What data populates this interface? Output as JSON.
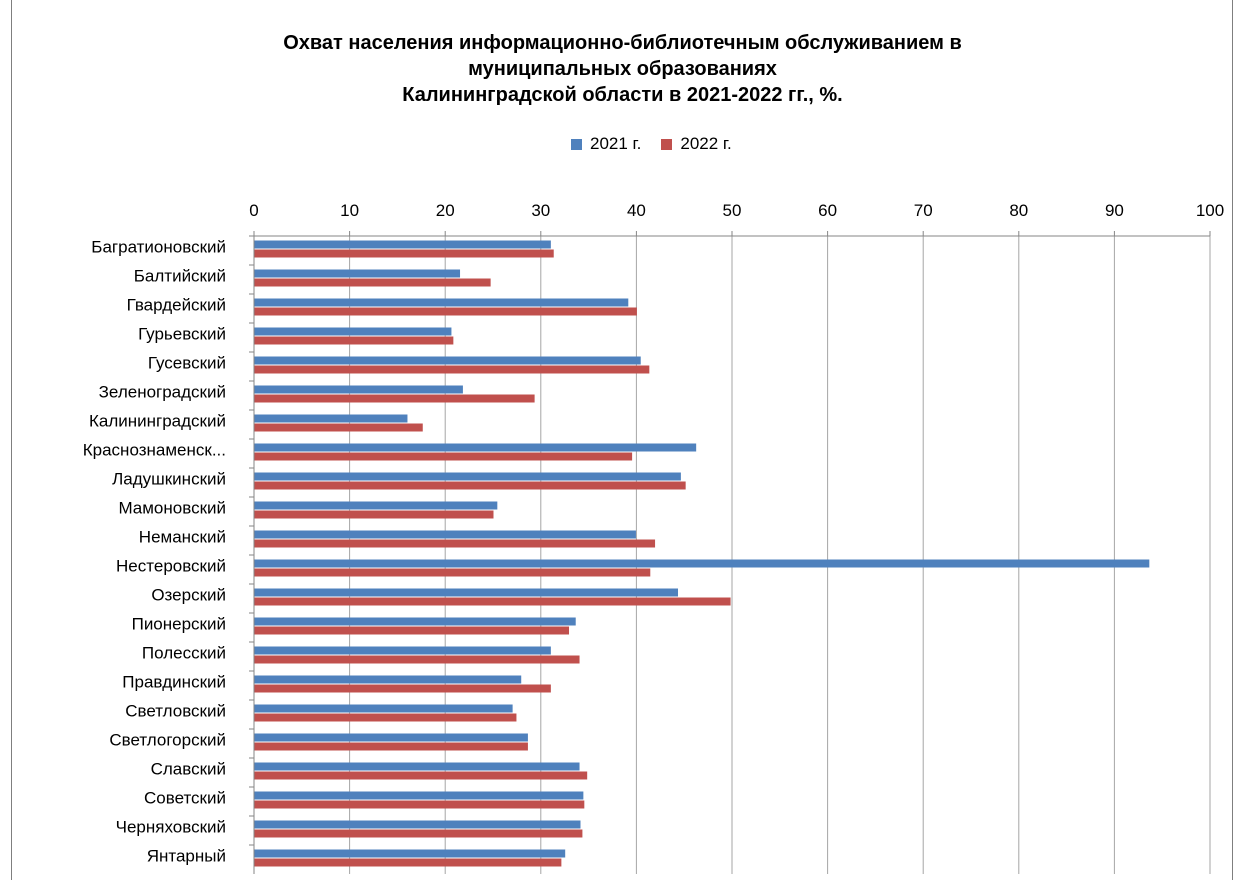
{
  "chart_data": {
    "type": "bar",
    "orientation": "horizontal",
    "title_lines": [
      "Охват населения информационно-библиотечным обслуживанием в",
      "муниципальных образованиях",
      "Калининградской области в 2021-2022 гг., %."
    ],
    "xlim": [
      0,
      100
    ],
    "x_ticks": [
      "0",
      "10",
      "20",
      "30",
      "40",
      "50",
      "60",
      "70",
      "80",
      "90",
      "100"
    ],
    "grid": true,
    "legend_position": "top",
    "categories": [
      "Багратионовский",
      "Балтийский",
      "Гвардейский",
      "Гурьевский",
      "Гусевский",
      "Зеленоградский",
      "Калининградский",
      "Краснознаменск...",
      "Ладушкинский",
      "Мамоновский",
      "Неманский",
      "Нестеровский",
      "Озерский",
      "Пионерский",
      "Полесский",
      "Правдинский",
      "Светловский",
      "Светлогорский",
      "Славский",
      "Советский",
      "Черняховский",
      "Янтарный"
    ],
    "series": [
      {
        "name": "2021 г.",
        "color": "#4f81bd",
        "values": [
          31.0,
          21.5,
          39.1,
          20.6,
          40.4,
          21.8,
          16.0,
          46.2,
          44.6,
          25.4,
          39.9,
          93.6,
          44.3,
          33.6,
          31.0,
          27.9,
          27.0,
          28.6,
          34.0,
          34.4,
          34.1,
          32.5
        ]
      },
      {
        "name": "2022 г.",
        "color": "#c0504d",
        "values": [
          31.3,
          24.7,
          40.0,
          20.8,
          41.3,
          29.3,
          17.6,
          39.5,
          45.1,
          25.0,
          41.9,
          41.4,
          49.8,
          32.9,
          34.0,
          31.0,
          27.4,
          28.6,
          34.8,
          34.5,
          34.3,
          32.1
        ]
      }
    ]
  }
}
